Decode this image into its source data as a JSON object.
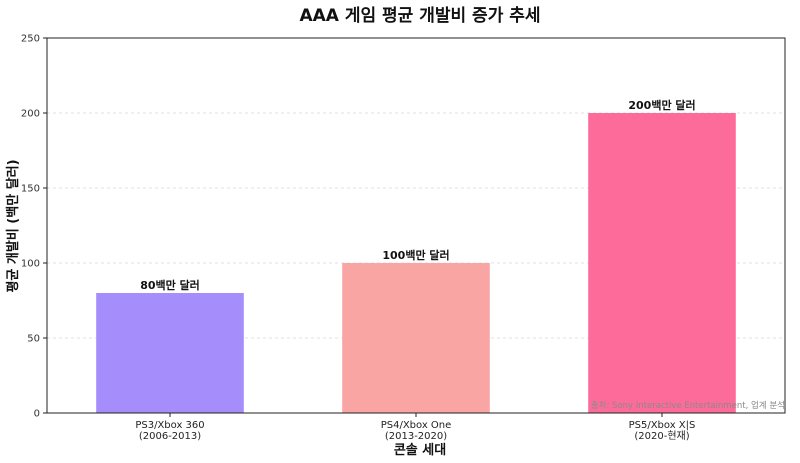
{
  "chart_data": {
    "type": "bar",
    "title": "AAA 게임 평균 개발비 증가 추세",
    "xlabel": "콘솔 세대",
    "ylabel": "평균 개발비 (백만 달러)",
    "ylim": [
      0,
      250
    ],
    "yticks": [
      0,
      50,
      100,
      150,
      200,
      250
    ],
    "grid": "horizontal dashed",
    "categories": [
      [
        "PS3/Xbox 360",
        "(2006-2013)"
      ],
      [
        "PS4/Xbox One",
        "(2013-2020)"
      ],
      [
        "PS5/Xbox X|S",
        "(2020-현재)"
      ]
    ],
    "values": [
      80,
      100,
      200
    ],
    "data_labels": [
      "80백만 달러",
      "100백만 달러",
      "200백만 달러"
    ],
    "colors": [
      "#a58dfb",
      "#f9a5a4",
      "#fd6b9a"
    ],
    "source_note": "출처: Sony Interactive Entertainment, 업계 분석"
  }
}
